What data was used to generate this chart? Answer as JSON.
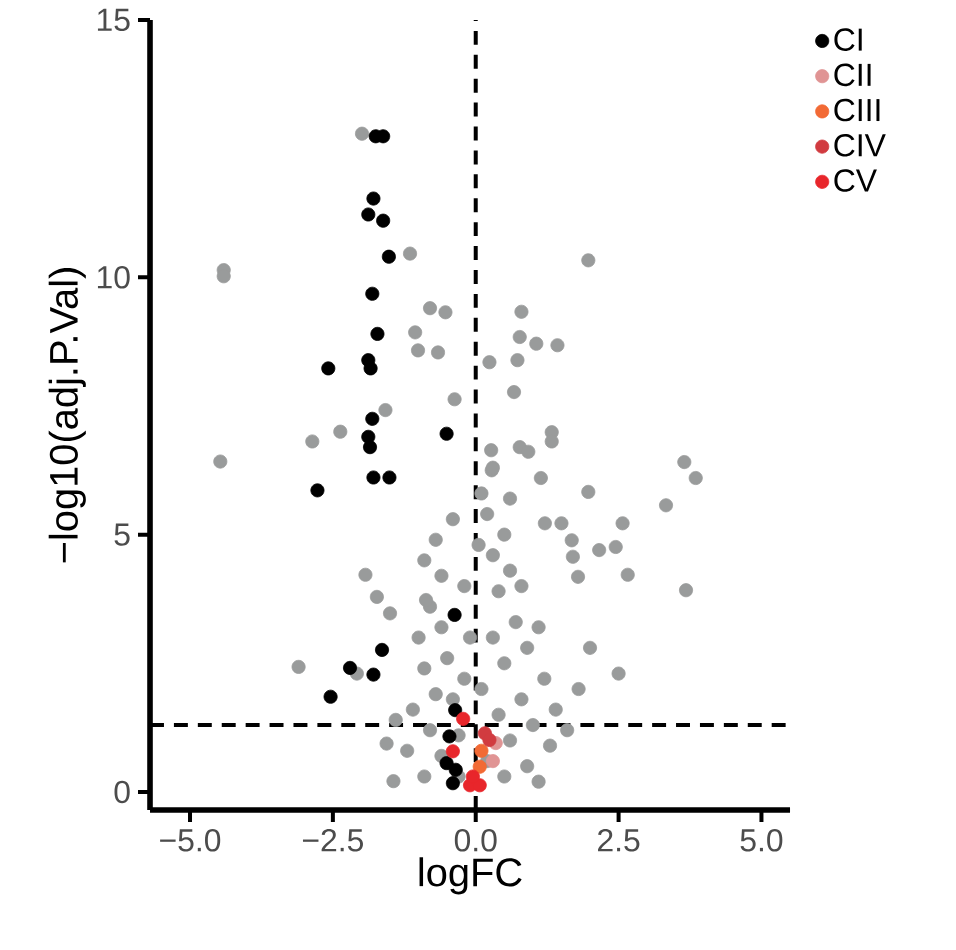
{
  "chart_data": {
    "type": "scatter",
    "xlabel": "logFC",
    "ylabel": "−log10(adj.P.Val)",
    "xlim": [
      -5.7,
      5.5
    ],
    "ylim": [
      -0.35,
      15
    ],
    "xticks": [
      {
        "value": -5,
        "label": "−5.0"
      },
      {
        "value": -2.5,
        "label": "−2.5"
      },
      {
        "value": 0,
        "label": "0.0"
      },
      {
        "value": 2.5,
        "label": "2.5"
      },
      {
        "value": 5,
        "label": "5.0"
      }
    ],
    "yticks": [
      0,
      5,
      10,
      15
    ],
    "grid": false,
    "legend": "top right",
    "marker": "circle",
    "ref_lines": [
      {
        "axis": "x",
        "value": 0,
        "line_style": "dashed",
        "color": "#000000"
      },
      {
        "axis": "y",
        "value": 1.3,
        "line_style": "dashed",
        "color": "#000000"
      }
    ],
    "series": [
      {
        "color": "#999b9b",
        "x": [
          -4.41,
          -4.41,
          -4.47,
          -2.86,
          -2.37,
          -1.58,
          -1.93,
          -1.73,
          -3.1,
          -2.08,
          -1.56,
          -1.44,
          -1.5,
          -1.99,
          -1.15,
          -0.8,
          -0.53,
          -1.06,
          -1.01,
          -0.66,
          0.24,
          1.97,
          0.8,
          0.77,
          1.06,
          1.43,
          0.73,
          -0.37,
          0.67,
          1.33,
          1.33,
          0.27,
          0.77,
          0.92,
          1.14,
          3.65,
          3.85,
          1.97,
          0.28,
          3.33,
          2.57,
          1.5,
          1.21,
          1.68,
          2.16,
          2.45,
          1.7,
          2.66,
          1.79,
          3.68,
          -0.9,
          -0.7,
          -0.6,
          -0.8,
          -1.0,
          -0.6,
          -0.9,
          -0.5,
          -0.7,
          -1.1,
          -0.4,
          -0.8,
          -1.2,
          -0.6,
          -0.9,
          -0.3,
          -0.2,
          -0.1,
          -0.2,
          0.05,
          0.1,
          0.2,
          0.3,
          0.5,
          0.4,
          0.6,
          0.8,
          0.7,
          0.3,
          0.5,
          0.9,
          1.1,
          1.2,
          0.8,
          0.4,
          0.6,
          1.0,
          1.4,
          0.2,
          0.5,
          0.9,
          1.3,
          -0.3,
          0.1,
          0.3,
          0.6,
          -0.4,
          1.6,
          2.0,
          2.5,
          1.8,
          -0.87,
          1.1,
          -1.4
        ],
        "values": [
          10.14,
          10.02,
          6.42,
          6.81,
          7.0,
          7.42,
          4.22,
          3.79,
          2.43,
          2.3,
          0.94,
          0.21,
          3.47,
          12.79,
          10.46,
          9.4,
          9.32,
          8.93,
          8.58,
          8.54,
          8.35,
          10.33,
          9.33,
          8.84,
          8.71,
          8.68,
          8.39,
          7.63,
          7.77,
          6.99,
          6.81,
          6.64,
          6.7,
          6.61,
          6.1,
          6.41,
          6.1,
          5.83,
          6.25,
          5.57,
          5.22,
          5.22,
          5.22,
          4.89,
          4.7,
          4.76,
          4.57,
          4.22,
          4.18,
          3.92,
          4.5,
          4.9,
          4.2,
          3.6,
          3.0,
          3.2,
          2.4,
          2.6,
          1.9,
          1.6,
          1.8,
          1.2,
          0.8,
          0.7,
          0.3,
          1.1,
          2.2,
          3.0,
          4.0,
          4.8,
          5.8,
          5.4,
          4.6,
          5.0,
          3.9,
          4.3,
          4.0,
          3.3,
          3.0,
          2.5,
          2.8,
          3.2,
          2.2,
          1.8,
          1.5,
          1.0,
          1.3,
          1.6,
          0.6,
          0.3,
          0.5,
          0.9,
          0.3,
          2.0,
          6.3,
          5.7,
          5.3,
          1.2,
          2.8,
          2.3,
          2.0,
          3.73,
          0.2,
          1.4
        ]
      },
      {
        "name": "CI",
        "color": "#000000",
        "x": [
          -1.75,
          -1.62,
          -1.79,
          -1.88,
          -1.62,
          -1.52,
          -1.81,
          -1.72,
          -2.58,
          -1.88,
          -1.84,
          -1.81,
          -1.88,
          -1.85,
          -0.51,
          -1.79,
          -1.51,
          -2.77,
          -0.37,
          -1.64,
          -2.2,
          -1.79,
          -2.54,
          -0.36,
          -0.46,
          -0.51,
          -0.4,
          -0.35
        ],
        "values": [
          12.74,
          12.74,
          11.53,
          11.22,
          11.1,
          10.4,
          9.68,
          8.9,
          8.23,
          8.39,
          8.23,
          7.25,
          6.9,
          6.7,
          6.96,
          6.11,
          6.11,
          5.86,
          3.44,
          2.76,
          2.41,
          2.28,
          1.85,
          1.59,
          1.08,
          0.56,
          0.17,
          0.43
        ]
      },
      {
        "name": "CII",
        "color": "#e09494",
        "x": [
          0.3,
          0.35
        ],
        "values": [
          0.6,
          0.95
        ]
      },
      {
        "name": "CIII",
        "color": "#f26a35",
        "x": [
          0.07,
          0.1
        ],
        "values": [
          0.49,
          0.8
        ]
      },
      {
        "name": "CIV",
        "color": "#d13b40",
        "x": [
          0.16,
          0.24
        ],
        "values": [
          1.14,
          1.01
        ]
      },
      {
        "name": "CV",
        "color": "#e8262b",
        "x": [
          -0.22,
          -0.4,
          -0.1,
          0.07,
          -0.05
        ],
        "values": [
          1.42,
          0.79,
          0.13,
          0.13,
          0.3
        ]
      }
    ]
  }
}
